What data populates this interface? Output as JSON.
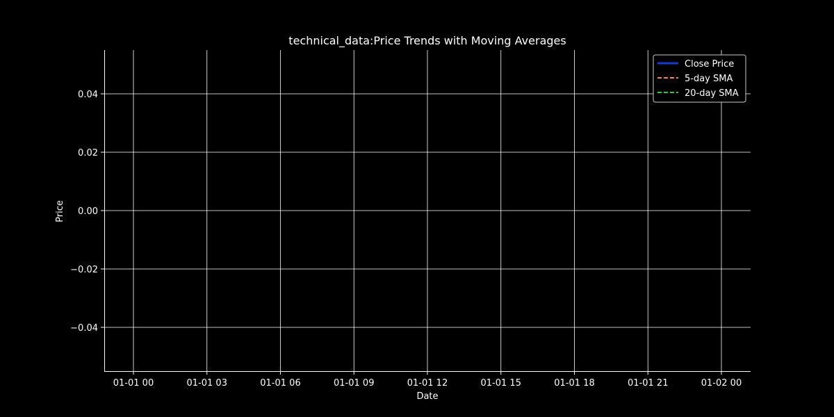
{
  "chart_data": {
    "type": "line",
    "title": "technical_data:Price Trends with Moving Averages",
    "xlabel": "Date",
    "ylabel": "Price",
    "x_tick_labels": [
      "01-01 00",
      "01-01 03",
      "01-01 06",
      "01-01 09",
      "01-01 12",
      "01-01 15",
      "01-01 18",
      "01-01 21",
      "01-02 00"
    ],
    "y_tick_values": [
      0.04,
      0.02,
      0.0,
      -0.02,
      -0.04
    ],
    "y_tick_labels": [
      "0.04",
      "0.02",
      "0.00",
      "−0.02",
      "−0.04"
    ],
    "ylim": [
      -0.055,
      0.055
    ],
    "grid": true,
    "legend_position": "top-right",
    "series": [
      {
        "name": "Close Price",
        "color": "#0d3bd9",
        "style": "solid",
        "values": []
      },
      {
        "name": "5-day SMA",
        "color": "#ff7f50",
        "style": "dashed",
        "values": []
      },
      {
        "name": "20-day SMA",
        "color": "#2ecc40",
        "style": "dashed",
        "values": []
      }
    ]
  }
}
